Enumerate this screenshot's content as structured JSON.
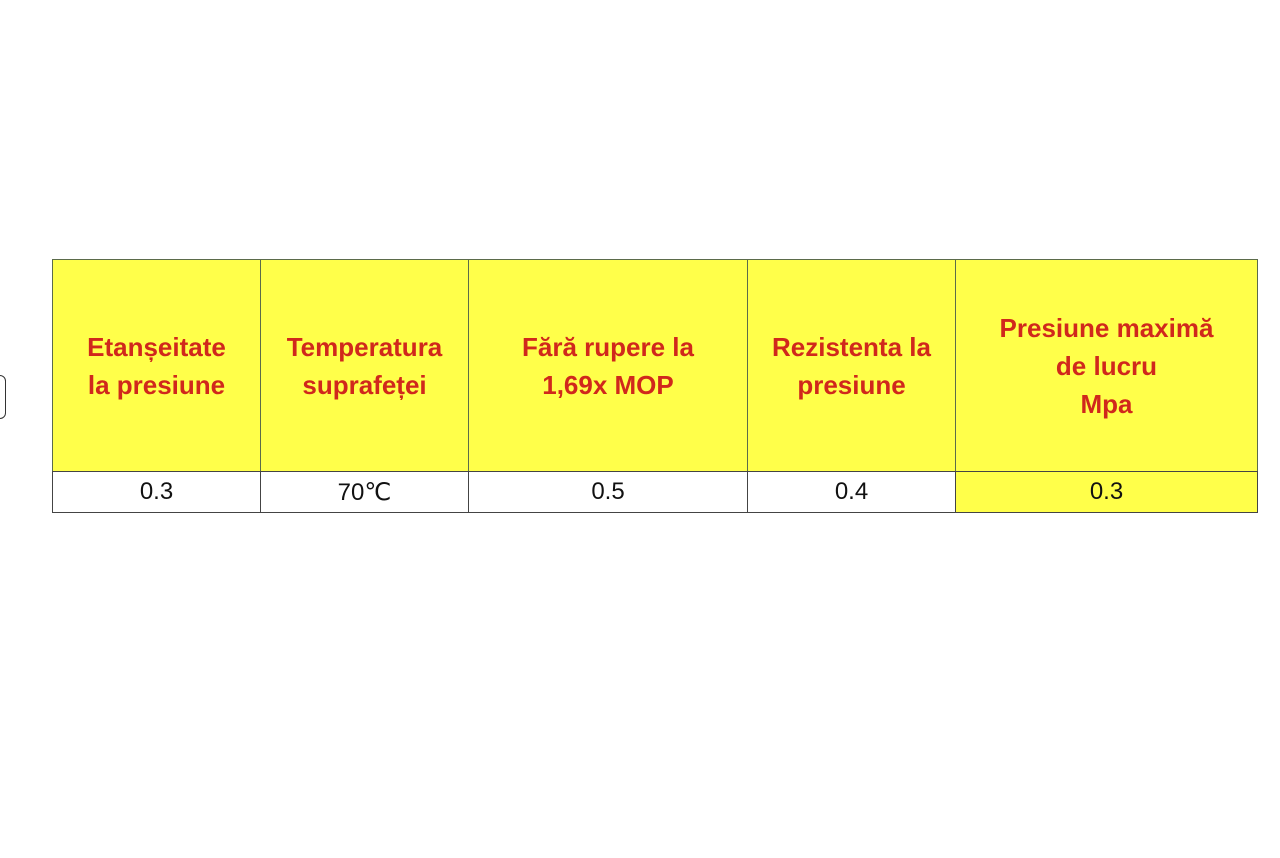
{
  "table": {
    "header": [
      [
        "Etanșeitate",
        "la presiune"
      ],
      [
        "Temperatura",
        "suprafeței"
      ],
      [
        "Fără rupere la",
        "1,69x MOP"
      ],
      [
        "Rezistenta la",
        "presiune"
      ],
      [
        "Presiune maximă",
        "de lucru",
        "Mpa"
      ]
    ],
    "rows": [
      [
        0.3,
        "70℃",
        0.5,
        0.4,
        0.3
      ]
    ]
  }
}
